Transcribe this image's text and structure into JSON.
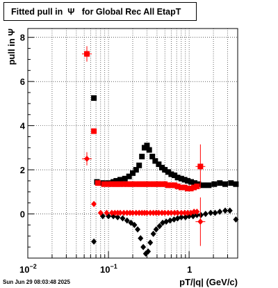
{
  "chart_data": {
    "type": "scatter",
    "title": "Fitted pull in  Ψ   for Global Rec All EtapT",
    "xlabel": "pT/|q| (GeV/c)",
    "ylabel": "pull in  Ψ",
    "xscale": "log",
    "xlim": [
      0.01,
      4.0
    ],
    "ylim": [
      -2.0,
      8.4
    ],
    "grid": true,
    "x_ticks": [
      {
        "v": 0.01,
        "base": "10",
        "exp": "−2"
      },
      {
        "v": 0.1,
        "base": "10",
        "exp": "−1"
      },
      {
        "v": 1,
        "base": "1",
        "exp": ""
      }
    ],
    "y_ticks": [
      0,
      2,
      4,
      6,
      8
    ],
    "series": [
      {
        "color": "#000000",
        "marker": "square",
        "points": [
          {
            "x": 0.066,
            "y": 5.25
          },
          {
            "x": 0.072,
            "y": 1.45
          },
          {
            "x": 0.085,
            "y": 1.4
          },
          {
            "x": 0.1,
            "y": 1.4
          },
          {
            "x": 0.115,
            "y": 1.45
          },
          {
            "x": 0.125,
            "y": 1.5
          },
          {
            "x": 0.14,
            "y": 1.55
          },
          {
            "x": 0.16,
            "y": 1.6
          },
          {
            "x": 0.18,
            "y": 1.7
          },
          {
            "x": 0.2,
            "y": 1.85
          },
          {
            "x": 0.22,
            "y": 2.0
          },
          {
            "x": 0.24,
            "y": 2.2
          },
          {
            "x": 0.26,
            "y": 2.6
          },
          {
            "x": 0.28,
            "y": 3.0
          },
          {
            "x": 0.3,
            "y": 3.1
          },
          {
            "x": 0.32,
            "y": 2.9
          },
          {
            "x": 0.35,
            "y": 2.6
          },
          {
            "x": 0.38,
            "y": 2.4
          },
          {
            "x": 0.42,
            "y": 2.25
          },
          {
            "x": 0.46,
            "y": 2.1
          },
          {
            "x": 0.5,
            "y": 2.0
          },
          {
            "x": 0.55,
            "y": 1.9
          },
          {
            "x": 0.6,
            "y": 1.8
          },
          {
            "x": 0.66,
            "y": 1.75
          },
          {
            "x": 0.72,
            "y": 1.65
          },
          {
            "x": 0.8,
            "y": 1.6
          },
          {
            "x": 0.88,
            "y": 1.55
          },
          {
            "x": 0.96,
            "y": 1.5
          },
          {
            "x": 1.06,
            "y": 1.45
          },
          {
            "x": 1.17,
            "y": 1.4
          },
          {
            "x": 1.3,
            "y": 1.35
          },
          {
            "x": 1.5,
            "y": 1.3
          },
          {
            "x": 1.75,
            "y": 1.3
          },
          {
            "x": 2.05,
            "y": 1.35
          },
          {
            "x": 2.4,
            "y": 1.4
          },
          {
            "x": 2.8,
            "y": 1.35
          },
          {
            "x": 3.3,
            "y": 1.4
          },
          {
            "x": 3.8,
            "y": 1.35
          }
        ]
      },
      {
        "color": "#000000",
        "marker": "diamond",
        "points": [
          {
            "x": 0.066,
            "y": -1.25
          },
          {
            "x": 0.085,
            "y": -0.1
          },
          {
            "x": 0.1,
            "y": -0.1
          },
          {
            "x": 0.115,
            "y": -0.1
          },
          {
            "x": 0.13,
            "y": -0.15
          },
          {
            "x": 0.15,
            "y": -0.2
          },
          {
            "x": 0.17,
            "y": -0.3
          },
          {
            "x": 0.19,
            "y": -0.4
          },
          {
            "x": 0.21,
            "y": -0.5
          },
          {
            "x": 0.23,
            "y": -0.7
          },
          {
            "x": 0.25,
            "y": -1.1
          },
          {
            "x": 0.27,
            "y": -1.5
          },
          {
            "x": 0.29,
            "y": -1.8
          },
          {
            "x": 0.31,
            "y": -1.7
          },
          {
            "x": 0.33,
            "y": -1.3
          },
          {
            "x": 0.36,
            "y": -0.9
          },
          {
            "x": 0.39,
            "y": -0.7
          },
          {
            "x": 0.43,
            "y": -0.55
          },
          {
            "x": 0.47,
            "y": -0.4
          },
          {
            "x": 0.52,
            "y": -0.35
          },
          {
            "x": 0.58,
            "y": -0.3
          },
          {
            "x": 0.65,
            "y": -0.25
          },
          {
            "x": 0.72,
            "y": -0.2
          },
          {
            "x": 0.8,
            "y": -0.15
          },
          {
            "x": 0.9,
            "y": -0.15
          },
          {
            "x": 1.0,
            "y": -0.1
          },
          {
            "x": 1.12,
            "y": -0.1
          },
          {
            "x": 1.25,
            "y": -0.05
          },
          {
            "x": 1.4,
            "y": -0.05
          },
          {
            "x": 1.6,
            "y": 0.0
          },
          {
            "x": 1.85,
            "y": 0.05
          },
          {
            "x": 2.1,
            "y": 0.05
          },
          {
            "x": 2.4,
            "y": 0.1
          },
          {
            "x": 2.8,
            "y": 0.15
          },
          {
            "x": 3.2,
            "y": 0.15
          },
          {
            "x": 3.8,
            "y": -0.25
          }
        ]
      },
      {
        "color": "#ff0000",
        "marker": "square",
        "points": [
          {
            "x": 0.054,
            "y": 7.25,
            "err": 0.35
          },
          {
            "x": 0.066,
            "y": 3.75
          },
          {
            "x": 0.074,
            "y": 1.4
          },
          {
            "x": 0.088,
            "y": 1.35
          },
          {
            "x": 0.1,
            "y": 1.35
          },
          {
            "x": 0.11,
            "y": 1.35
          },
          {
            "x": 0.12,
            "y": 1.35
          },
          {
            "x": 0.13,
            "y": 1.35
          },
          {
            "x": 0.14,
            "y": 1.35
          },
          {
            "x": 0.155,
            "y": 1.35
          },
          {
            "x": 0.17,
            "y": 1.35
          },
          {
            "x": 0.185,
            "y": 1.35
          },
          {
            "x": 0.2,
            "y": 1.35
          },
          {
            "x": 0.22,
            "y": 1.35
          },
          {
            "x": 0.24,
            "y": 1.35
          },
          {
            "x": 0.26,
            "y": 1.35
          },
          {
            "x": 0.28,
            "y": 1.35
          },
          {
            "x": 0.3,
            "y": 1.35
          },
          {
            "x": 0.33,
            "y": 1.35
          },
          {
            "x": 0.36,
            "y": 1.35
          },
          {
            "x": 0.39,
            "y": 1.35
          },
          {
            "x": 0.42,
            "y": 1.35
          },
          {
            "x": 0.46,
            "y": 1.35
          },
          {
            "x": 0.5,
            "y": 1.35
          },
          {
            "x": 0.55,
            "y": 1.3
          },
          {
            "x": 0.6,
            "y": 1.3
          },
          {
            "x": 0.66,
            "y": 1.3
          },
          {
            "x": 0.72,
            "y": 1.25
          },
          {
            "x": 0.8,
            "y": 1.2
          },
          {
            "x": 0.88,
            "y": 1.2
          },
          {
            "x": 0.96,
            "y": 1.15
          },
          {
            "x": 1.05,
            "y": 1.15
          },
          {
            "x": 1.15,
            "y": 1.2
          },
          {
            "x": 1.25,
            "y": 1.25
          },
          {
            "x": 1.38,
            "y": 2.15,
            "err": 1.0
          }
        ]
      },
      {
        "color": "#ff0000",
        "marker": "diamond",
        "points": [
          {
            "x": 0.054,
            "y": 2.5,
            "err": 0.3
          },
          {
            "x": 0.066,
            "y": 0.45
          },
          {
            "x": 0.08,
            "y": 0.05
          },
          {
            "x": 0.095,
            "y": 0.05
          },
          {
            "x": 0.11,
            "y": 0.05
          },
          {
            "x": 0.12,
            "y": 0.05
          },
          {
            "x": 0.13,
            "y": 0.05
          },
          {
            "x": 0.14,
            "y": 0.05
          },
          {
            "x": 0.155,
            "y": 0.05
          },
          {
            "x": 0.17,
            "y": 0.05
          },
          {
            "x": 0.185,
            "y": 0.05
          },
          {
            "x": 0.2,
            "y": 0.05
          },
          {
            "x": 0.22,
            "y": 0.05
          },
          {
            "x": 0.24,
            "y": 0.05
          },
          {
            "x": 0.26,
            "y": 0.05
          },
          {
            "x": 0.28,
            "y": 0.05
          },
          {
            "x": 0.3,
            "y": 0.05
          },
          {
            "x": 0.33,
            "y": 0.05
          },
          {
            "x": 0.36,
            "y": 0.05
          },
          {
            "x": 0.39,
            "y": 0.05
          },
          {
            "x": 0.42,
            "y": 0.05
          },
          {
            "x": 0.46,
            "y": 0.05
          },
          {
            "x": 0.5,
            "y": 0.05
          },
          {
            "x": 0.55,
            "y": 0.05
          },
          {
            "x": 0.6,
            "y": 0.05
          },
          {
            "x": 0.66,
            "y": 0.05
          },
          {
            "x": 0.72,
            "y": 0.05
          },
          {
            "x": 0.8,
            "y": 0.05
          },
          {
            "x": 0.88,
            "y": 0.05
          },
          {
            "x": 0.96,
            "y": 0.05
          },
          {
            "x": 1.05,
            "y": 0.05
          },
          {
            "x": 1.15,
            "y": 0.1
          },
          {
            "x": 1.25,
            "y": 0.1
          },
          {
            "x": 1.38,
            "y": -0.35,
            "err": 1.1
          }
        ]
      }
    ]
  },
  "timestamp": "Sun Jun 29 08:03:48 2025"
}
